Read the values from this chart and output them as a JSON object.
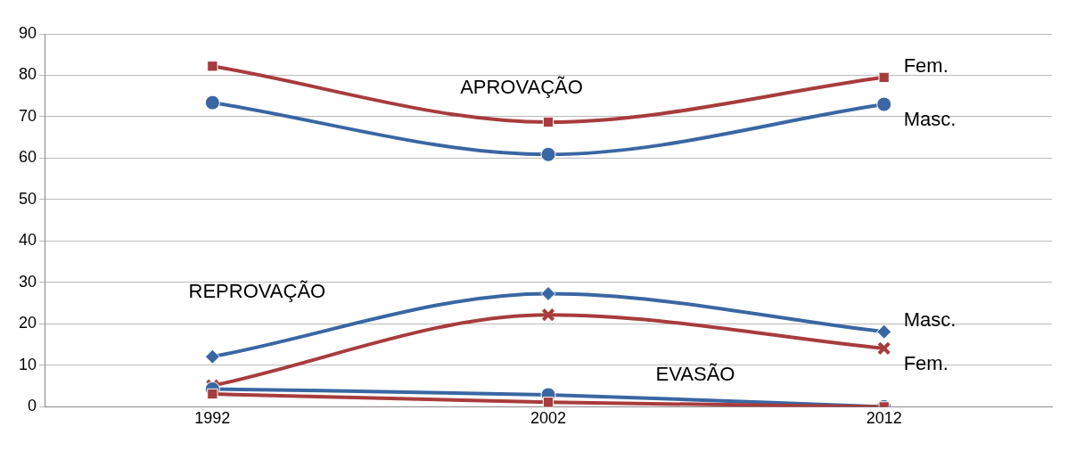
{
  "chart_data": {
    "type": "line",
    "x": [
      1992,
      2002,
      2012
    ],
    "xlim": [
      1987,
      2017
    ],
    "xticks": [
      1992,
      2002,
      2012
    ],
    "ylim": [
      0,
      90
    ],
    "yticks": [
      0,
      10,
      20,
      30,
      40,
      50,
      60,
      70,
      80,
      90
    ],
    "grid": "y",
    "legend": false,
    "series": [
      {
        "name": "Fem.",
        "color": "#a83c3c",
        "marker": "square",
        "values": [
          82.2,
          68.7,
          79.5
        ]
      },
      {
        "name": "Masc.",
        "color": "#3a67a3",
        "marker": "circle",
        "values": [
          73.4,
          60.9,
          73
        ]
      },
      {
        "name": "Masc.",
        "color": "#3a67a3",
        "marker": "diamond",
        "values": [
          12.1,
          27.3,
          18.1
        ]
      },
      {
        "name": "Fem.",
        "color": "#a83c3c",
        "marker": "cross",
        "values": [
          5.1,
          22.2,
          14.1
        ]
      },
      {
        "color": "#3a67a3",
        "marker": "circle",
        "values": [
          4.3,
          2.9,
          0
        ]
      },
      {
        "color": "#a83c3c",
        "marker": "square",
        "values": [
          3.1,
          1.1,
          0
        ]
      }
    ],
    "annotations": [
      "APROVAÇÃO",
      "REPROVAÇÃO",
      "EVASÃO"
    ]
  }
}
